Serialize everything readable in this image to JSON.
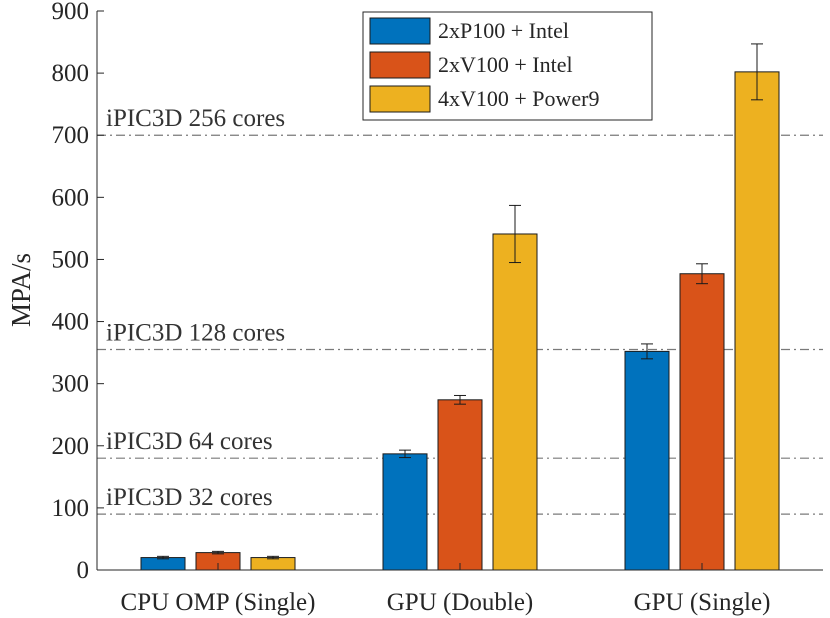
{
  "chart_data": {
    "type": "bar",
    "title": "",
    "xlabel": "",
    "ylabel": "MPA/s",
    "ylim": [
      0,
      900
    ],
    "yticks": [
      0,
      100,
      200,
      300,
      400,
      500,
      600,
      700,
      800,
      900
    ],
    "categories": [
      "CPU OMP (Single)",
      "GPU (Double)",
      "GPU (Single)"
    ],
    "series": [
      {
        "name": "2xP100 + Intel",
        "color": "#0072BD",
        "values": [
          20,
          187,
          352
        ],
        "errors": [
          2,
          6,
          12
        ]
      },
      {
        "name": "2xV100 + Intel",
        "color": "#D95319",
        "values": [
          28,
          274,
          477
        ],
        "errors": [
          2,
          7,
          16
        ]
      },
      {
        "name": "4xV100 + Power9",
        "color": "#EDB120",
        "values": [
          20,
          541,
          802
        ],
        "errors": [
          2,
          46,
          45
        ]
      }
    ],
    "reference_lines": [
      {
        "label": "iPIC3D 256 cores",
        "value": 700
      },
      {
        "label": "iPIC3D 128 cores",
        "value": 355
      },
      {
        "label": "iPIC3D 64 cores",
        "value": 180
      },
      {
        "label": "iPIC3D 32 cores",
        "value": 90
      }
    ],
    "legend_position": "top-center"
  }
}
